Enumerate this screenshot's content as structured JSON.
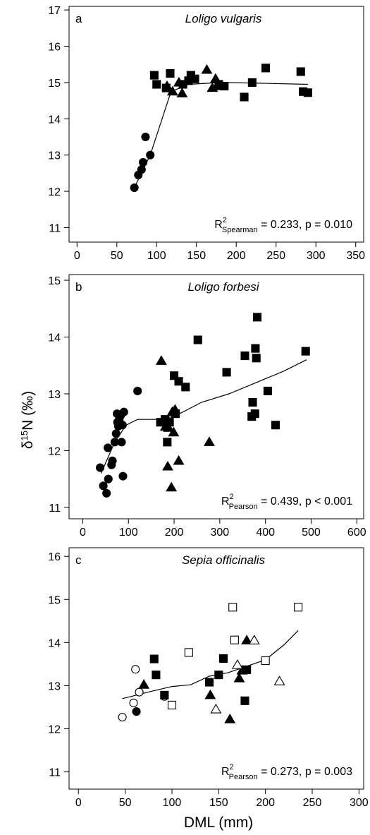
{
  "figure": {
    "ylabel": "δ15N (‰)",
    "xlabel": "DML (mm)",
    "colors": {
      "ink": "#000000",
      "open_fill": "#ffffff"
    }
  },
  "chart_data": [
    {
      "type": "scatter",
      "panel_letter": "a",
      "title": "Loligo vulgaris",
      "stat": {
        "prefix": "R",
        "sup": "2",
        "sub": "Spearman",
        "rest": " = 0.233, p = 0.010"
      },
      "xlim": [
        -10,
        360
      ],
      "ylim": [
        10.6,
        17.1
      ],
      "xticks": [
        0,
        50,
        100,
        150,
        200,
        250,
        300,
        350
      ],
      "yticks": [
        11,
        12,
        13,
        14,
        15,
        16,
        17
      ],
      "series": [
        {
          "marker": "circle-filled",
          "points": [
            [
              72,
              12.1
            ],
            [
              77,
              12.45
            ],
            [
              81,
              12.6
            ],
            [
              83,
              12.8
            ],
            [
              86,
              13.5
            ],
            [
              92,
              13.0
            ]
          ]
        },
        {
          "marker": "square-filled",
          "points": [
            [
              97,
              15.2
            ],
            [
              100,
              14.95
            ],
            [
              112,
              14.85
            ],
            [
              117,
              15.25
            ],
            [
              133,
              14.95
            ],
            [
              140,
              15.05
            ],
            [
              143,
              15.2
            ],
            [
              148,
              15.1
            ],
            [
              178,
              14.95
            ],
            [
              185,
              14.9
            ],
            [
              210,
              14.6
            ],
            [
              220,
              15.0
            ],
            [
              237,
              15.4
            ],
            [
              281,
              15.3
            ],
            [
              284,
              14.75
            ],
            [
              290,
              14.72
            ]
          ]
        },
        {
          "marker": "triangle-filled",
          "points": [
            [
              113,
              14.9
            ],
            [
              120,
              14.75
            ],
            [
              128,
              15.0
            ],
            [
              132,
              14.7
            ],
            [
              163,
              15.35
            ],
            [
              170,
              14.85
            ],
            [
              174,
              15.1
            ],
            [
              176,
              14.9
            ]
          ]
        }
      ],
      "trend": [
        [
          72,
          12.1
        ],
        [
          92,
          13.0
        ],
        [
          118,
          14.75
        ],
        [
          140,
          14.95
        ],
        [
          180,
          15.0
        ],
        [
          230,
          14.98
        ],
        [
          290,
          14.95
        ]
      ]
    },
    {
      "type": "scatter",
      "panel_letter": "b",
      "title": "Loligo forbesi",
      "stat": {
        "prefix": "R",
        "sup": "2",
        "sub": "Pearson",
        "rest": " = 0.439, p < 0.001"
      },
      "xlim": [
        -30,
        615
      ],
      "ylim": [
        10.8,
        15.1
      ],
      "xticks": [
        0,
        100,
        200,
        300,
        400,
        500,
        600
      ],
      "yticks": [
        11,
        12,
        13,
        14,
        15
      ],
      "series": [
        {
          "marker": "circle-filled",
          "points": [
            [
              38,
              11.7
            ],
            [
              45,
              11.38
            ],
            [
              52,
              11.25
            ],
            [
              55,
              12.05
            ],
            [
              56,
              11.5
            ],
            [
              63,
              11.75
            ],
            [
              65,
              11.82
            ],
            [
              70,
              12.15
            ],
            [
              73,
              12.3
            ],
            [
              75,
              12.65
            ],
            [
              76,
              12.5
            ],
            [
              78,
              12.43
            ],
            [
              80,
              12.55
            ],
            [
              83,
              12.62
            ],
            [
              85,
              12.15
            ],
            [
              87,
              12.45
            ],
            [
              88,
              11.55
            ],
            [
              90,
              12.68
            ],
            [
              120,
              13.05
            ]
          ]
        },
        {
          "marker": "square-filled",
          "points": [
            [
              170,
              12.5
            ],
            [
              180,
              12.55
            ],
            [
              185,
              12.15
            ],
            [
              190,
              12.5
            ],
            [
              200,
              13.32
            ],
            [
              203,
              12.65
            ],
            [
              210,
              13.22
            ],
            [
              225,
              13.12
            ],
            [
              252,
              13.95
            ],
            [
              315,
              13.38
            ],
            [
              355,
              13.67
            ],
            [
              370,
              12.6
            ],
            [
              372,
              12.85
            ],
            [
              377,
              12.65
            ],
            [
              378,
              13.8
            ],
            [
              380,
              13.63
            ],
            [
              382,
              14.35
            ],
            [
              405,
              13.05
            ],
            [
              422,
              12.45
            ],
            [
              488,
              13.75
            ]
          ]
        },
        {
          "marker": "triangle-filled",
          "points": [
            [
              172,
              13.58
            ],
            [
              181,
              12.42
            ],
            [
              186,
              11.72
            ],
            [
              188,
              12.4
            ],
            [
              194,
              11.35
            ],
            [
              196,
              12.68
            ],
            [
              199,
              12.32
            ],
            [
              202,
              12.72
            ],
            [
              210,
              11.82
            ],
            [
              277,
              12.15
            ]
          ]
        }
      ],
      "trend": [
        [
          40,
          11.6
        ],
        [
          70,
          12.15
        ],
        [
          95,
          12.45
        ],
        [
          120,
          12.55
        ],
        [
          160,
          12.55
        ],
        [
          200,
          12.6
        ],
        [
          260,
          12.85
        ],
        [
          320,
          13.0
        ],
        [
          380,
          13.2
        ],
        [
          440,
          13.4
        ],
        [
          490,
          13.6
        ]
      ]
    },
    {
      "type": "scatter",
      "panel_letter": "c",
      "title": "Sepia officinalis",
      "stat": {
        "prefix": "R",
        "sup": "2",
        "sub": "Pearson",
        "rest": " = 0.273, p = 0.003"
      },
      "xlim": [
        -10,
        305
      ],
      "ylim": [
        10.6,
        16.2
      ],
      "xticks": [
        0,
        50,
        100,
        150,
        200,
        250,
        300
      ],
      "yticks": [
        11,
        12,
        13,
        14,
        15,
        16
      ],
      "series": [
        {
          "marker": "circle-filled",
          "points": [
            [
              62,
              12.4
            ]
          ]
        },
        {
          "marker": "circle-open",
          "points": [
            [
              47,
              12.27
            ],
            [
              59,
              12.6
            ],
            [
              61,
              13.38
            ],
            [
              65,
              12.85
            ],
            [
              92,
              12.75
            ]
          ]
        },
        {
          "marker": "square-filled",
          "points": [
            [
              81,
              13.62
            ],
            [
              83,
              13.25
            ],
            [
              92,
              12.78
            ],
            [
              140,
              13.08
            ],
            [
              150,
              13.25
            ],
            [
              155,
              13.63
            ],
            [
              178,
              12.65
            ],
            [
              180,
              13.37
            ]
          ]
        },
        {
          "marker": "square-open",
          "points": [
            [
              100,
              12.55
            ],
            [
              118,
              13.77
            ],
            [
              165,
              14.82
            ],
            [
              167,
              14.06
            ],
            [
              200,
              13.58
            ],
            [
              235,
              14.82
            ]
          ]
        },
        {
          "marker": "triangle-filled",
          "points": [
            [
              70,
              13.02
            ],
            [
              141,
              12.78
            ],
            [
              162,
              12.22
            ],
            [
              172,
              13.17
            ],
            [
              175,
              13.35
            ],
            [
              180,
              14.05
            ]
          ]
        },
        {
          "marker": "triangle-open",
          "points": [
            [
              147,
              12.45
            ],
            [
              170,
              13.48
            ],
            [
              188,
              14.05
            ],
            [
              215,
              13.1
            ]
          ]
        }
      ],
      "trend": [
        [
          47,
          12.7
        ],
        [
          80,
          12.88
        ],
        [
          100,
          12.98
        ],
        [
          120,
          13.02
        ],
        [
          140,
          13.22
        ],
        [
          160,
          13.3
        ],
        [
          180,
          13.45
        ],
        [
          200,
          13.6
        ],
        [
          220,
          13.95
        ],
        [
          235,
          14.28
        ]
      ]
    }
  ]
}
